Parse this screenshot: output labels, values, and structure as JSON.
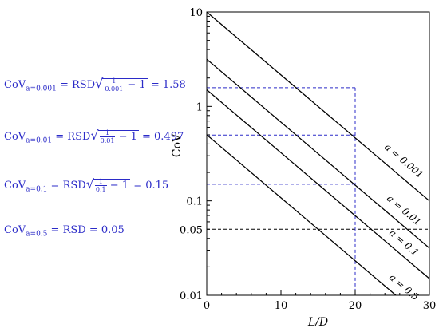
{
  "chart_data": {
    "type": "line",
    "xlabel": "L/D",
    "ylabel": "CoV",
    "xlim": [
      0,
      30
    ],
    "ylim": [
      0.01,
      10
    ],
    "yscale": "log",
    "x_ticks": [
      "0",
      "10",
      "20",
      "30"
    ],
    "y_ticks": [
      "0.01",
      "0.05",
      "0.1",
      "1",
      "10"
    ],
    "series": [
      {
        "name": "a = 0.001",
        "x": [
          0,
          30
        ],
        "y": [
          10,
          0.1
        ],
        "label": "a = 0.001"
      },
      {
        "name": "a = 0.01",
        "x": [
          0,
          30
        ],
        "y": [
          3.16,
          0.0316
        ],
        "label": "a = 0.01"
      },
      {
        "name": "a = 0.1",
        "x": [
          0,
          30
        ],
        "y": [
          1.5,
          0.015
        ],
        "label": "a = 0.1"
      },
      {
        "name": "a = 0.5",
        "x": [
          0,
          30
        ],
        "y": [
          0.5,
          0.005
        ],
        "label": "a = 0.5"
      }
    ],
    "reference_lines": [
      {
        "y": 1.58,
        "x_end": 20,
        "color": "#2b2bc8"
      },
      {
        "y": 0.497,
        "x_end": 20,
        "color": "#2b2bc8"
      },
      {
        "y": 0.15,
        "x_end": 20,
        "color": "#2b2bc8"
      },
      {
        "y": 0.05,
        "x_end": 30,
        "color": "#000000"
      }
    ],
    "vertical_reference": {
      "x": 20,
      "color": "#2b2bc8"
    },
    "colors": {
      "blue": "#2b2bc8",
      "black": "#000000"
    }
  },
  "equations": [
    {
      "cov": "CoV",
      "sub": "a=0.001",
      "rsd": "RSD",
      "num": "1",
      "den": "0.001",
      "minus": "− 1",
      "result": "= 1.58"
    },
    {
      "cov": "CoV",
      "sub": "a=0.01",
      "rsd": "RSD",
      "num": "1",
      "den": "0.01",
      "minus": "− 1",
      "result": "= 0.497"
    },
    {
      "cov": "CoV",
      "sub": "a=0.1",
      "rsd": "RSD",
      "num": "1",
      "den": "0.1",
      "minus": "− 1",
      "result": "= 0.15"
    },
    {
      "cov": "CoV",
      "sub": "a=0.5",
      "rsd": "= RSD",
      "result": "= 0.05"
    }
  ]
}
